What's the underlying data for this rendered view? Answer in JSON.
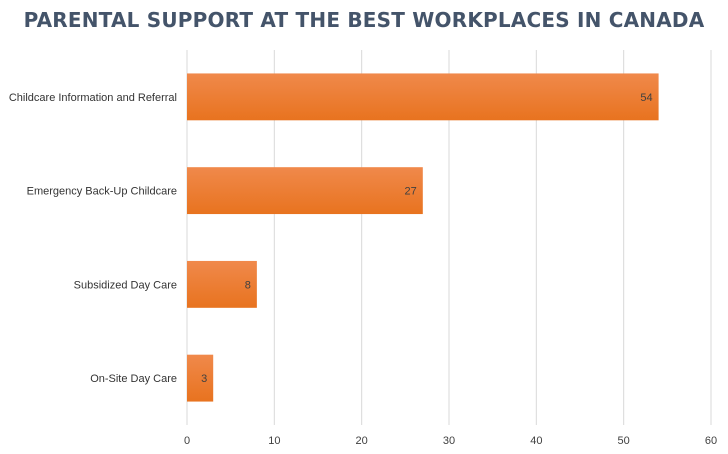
{
  "colors": {
    "bar_top": "#f0894b",
    "bar_bottom": "#e8731f",
    "grid": "#d9d9d9",
    "title": "#44546a"
  },
  "chart_data": {
    "type": "bar",
    "orientation": "horizontal",
    "title": "PARENTAL SUPPORT AT THE BEST WORKPLACES IN CANADA",
    "categories": [
      "Childcare Information and Referral",
      "Emergency Back-Up Childcare",
      "Subsidized Day Care",
      "On-Site Day Care"
    ],
    "values": [
      54,
      27,
      8,
      3
    ],
    "xlim": [
      0,
      60
    ],
    "xticks": [
      0,
      10,
      20,
      30,
      40,
      50,
      60
    ],
    "grid": true,
    "legend": "none",
    "data_labels": true
  }
}
